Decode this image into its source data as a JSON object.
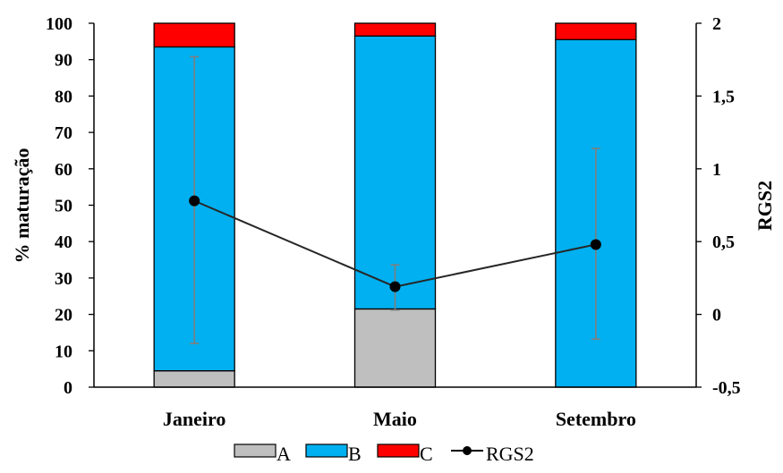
{
  "chart_data": {
    "type": "bar",
    "stacked": true,
    "categories": [
      "Janeiro",
      "Maio",
      "Setembro"
    ],
    "series": [
      {
        "name": "A",
        "color": "#bfbfbf",
        "values": [
          4.5,
          21.5,
          0
        ]
      },
      {
        "name": "B",
        "color": "#00b0f0",
        "values": [
          89,
          75,
          95.5
        ]
      },
      {
        "name": "C",
        "color": "#ff0000",
        "values": [
          6.5,
          3.5,
          4.5
        ]
      }
    ],
    "line_series": {
      "name": "RGS2",
      "axis": "right",
      "color": "#262626",
      "values": [
        0.78,
        0.19,
        0.48
      ],
      "error_low": [
        -0.2,
        0.03,
        -0.17
      ],
      "error_high": [
        1.77,
        0.34,
        1.14
      ]
    },
    "ylabel": "% maturação",
    "ylabel_right": "RGS2",
    "ylim": [
      0,
      100
    ],
    "ylim_right": [
      -0.5,
      2
    ],
    "yticks": [
      "0",
      "10",
      "20",
      "30",
      "40",
      "50",
      "60",
      "70",
      "80",
      "90",
      "100"
    ],
    "yticks_right": [
      "-0,5",
      "0",
      "0,5",
      "1",
      "1,5",
      "2"
    ],
    "legend_position": "bottom",
    "grid": false
  }
}
